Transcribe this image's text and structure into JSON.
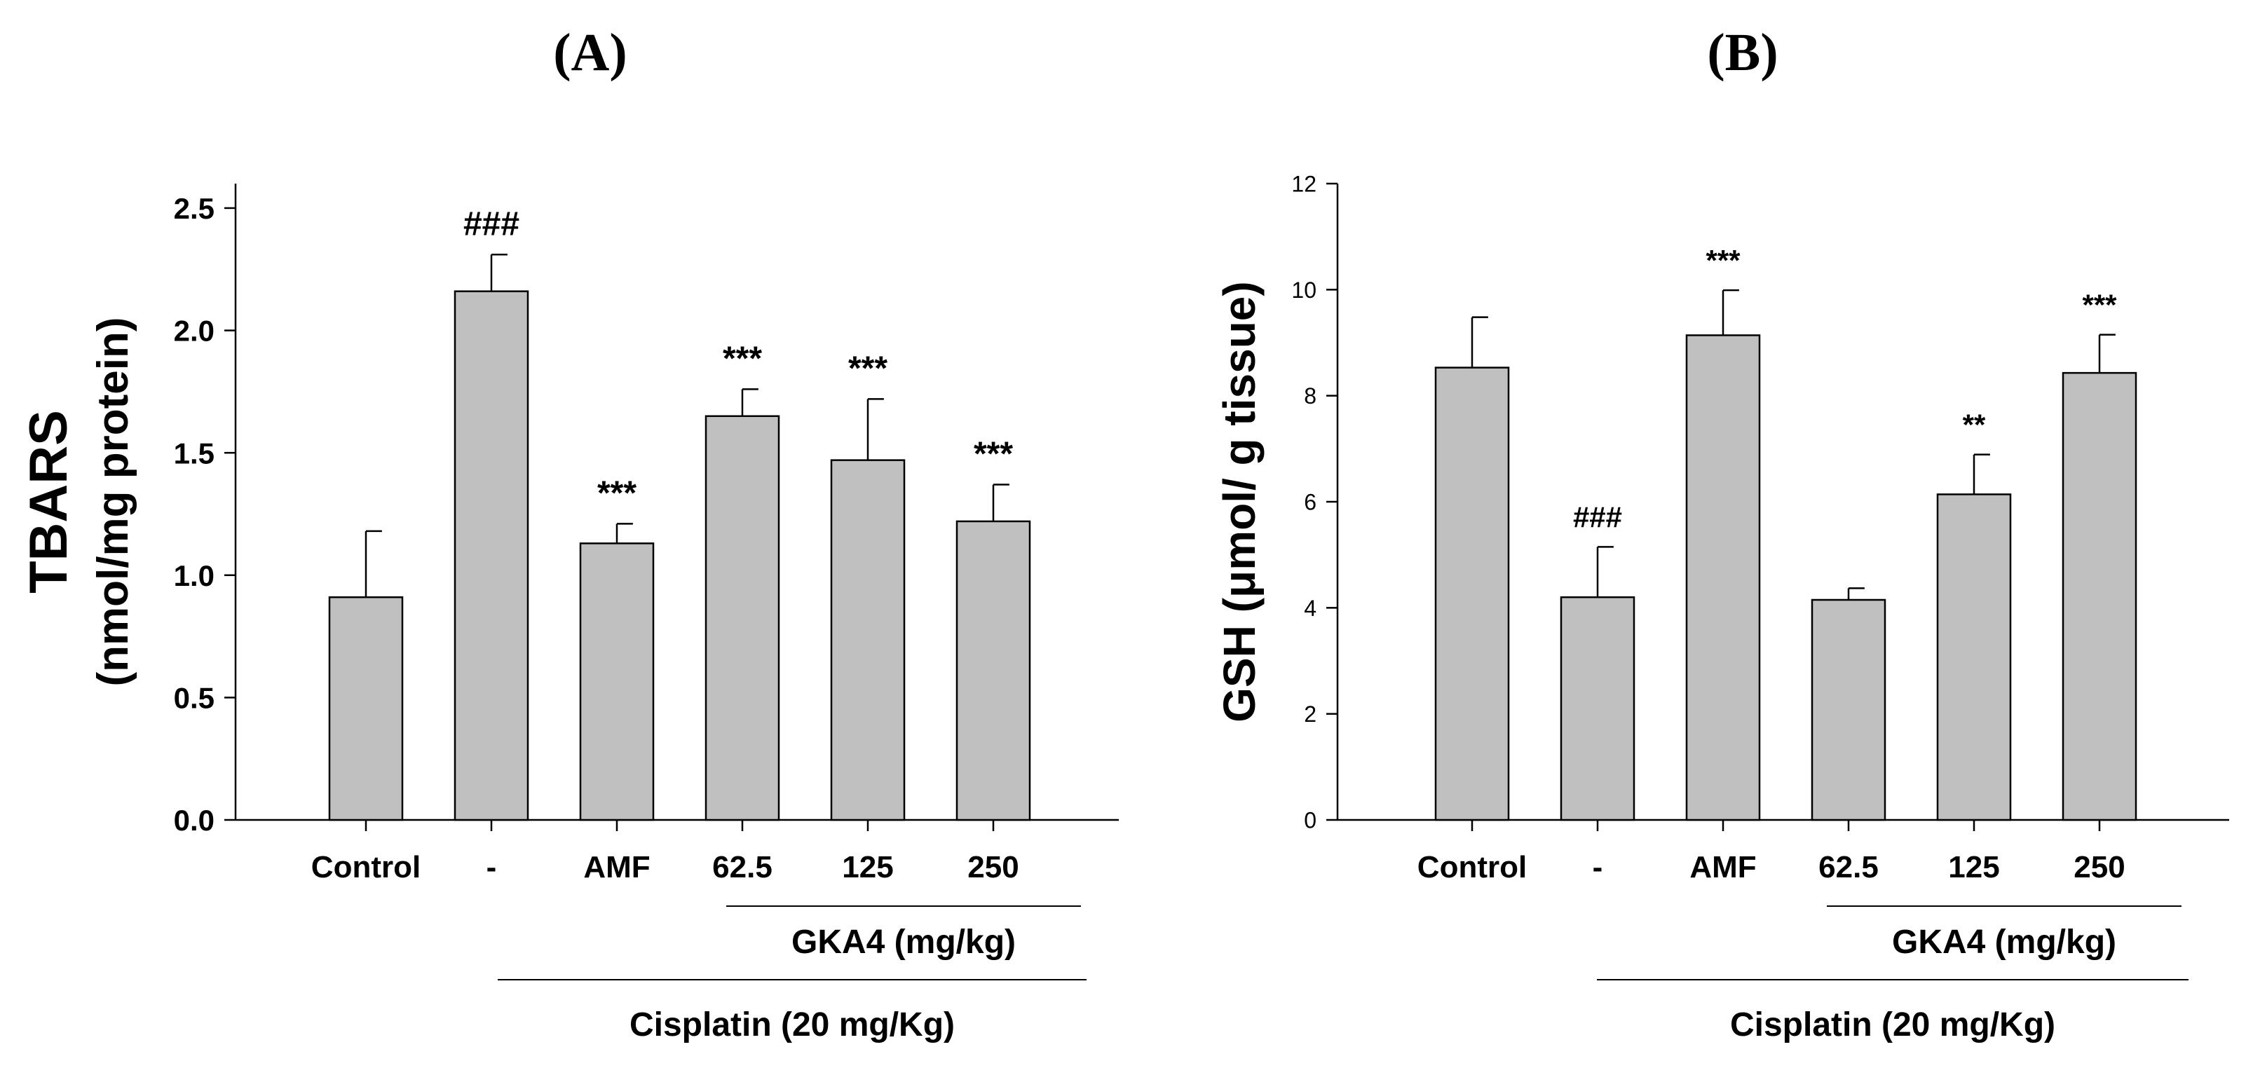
{
  "chart_data": [
    {
      "type": "bar",
      "panel_label": "(A)",
      "title": "",
      "ylabel_line1": "TBARS",
      "ylabel_line2": "(nmol/mg protein)",
      "xlabel": "",
      "categories": [
        "Control",
        "-",
        "AMF",
        "62.5",
        "125",
        "250"
      ],
      "values": [
        0.91,
        2.16,
        1.13,
        1.65,
        1.47,
        1.22
      ],
      "errors": [
        0.27,
        0.15,
        0.08,
        0.11,
        0.25,
        0.15
      ],
      "annotations": [
        "",
        "###",
        "***",
        "***",
        "***",
        "***"
      ],
      "ylim": [
        0,
        2.6
      ],
      "yticks": [
        0.0,
        0.5,
        1.0,
        1.5,
        2.0,
        2.5
      ],
      "ytick_labels": [
        "0.0",
        "0.5",
        "1.0",
        "1.5",
        "2.0",
        "2.5"
      ],
      "bar_color": "#c0c0c0",
      "groups": [
        {
          "label": "GKA4 (mg/kg)",
          "from": 3,
          "to": 5
        },
        {
          "label": "Cisplatin (20 mg/Kg)",
          "from": 1,
          "to": 5
        }
      ]
    },
    {
      "type": "bar",
      "panel_label": "(B)",
      "title": "",
      "ylabel_line1": "GSH (μmol/ g tissue)",
      "ylabel_line2": "",
      "xlabel": "",
      "categories": [
        "Control",
        "-",
        "AMF",
        "62.5",
        "125",
        "250"
      ],
      "values": [
        8.53,
        4.2,
        9.14,
        4.15,
        6.14,
        8.43
      ],
      "errors": [
        0.95,
        0.95,
        0.85,
        0.22,
        0.75,
        0.72
      ],
      "annotations": [
        "",
        "###",
        "***",
        "",
        "**",
        "***"
      ],
      "ylim": [
        0,
        12
      ],
      "yticks": [
        0,
        2,
        4,
        6,
        8,
        10,
        12
      ],
      "ytick_labels": [
        "0",
        "2",
        "4",
        "6",
        "8",
        "10",
        "12"
      ],
      "bar_color": "#c0c0c0",
      "groups": [
        {
          "label": "GKA4 (mg/kg)",
          "from": 3,
          "to": 5
        },
        {
          "label": "Cisplatin (20 mg/Kg)",
          "from": 1,
          "to": 5
        }
      ]
    }
  ]
}
